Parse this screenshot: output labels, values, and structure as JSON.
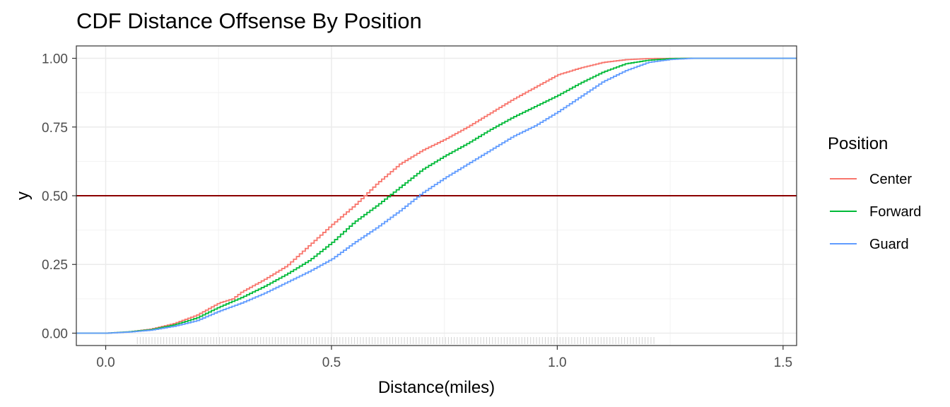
{
  "chart_data": {
    "type": "line",
    "subtype": "step-cdf",
    "title": "CDF Distance Offsense By Position",
    "xlabel": "Distance(miles)",
    "ylabel": "y",
    "xlim": [
      -0.065,
      1.53
    ],
    "ylim": [
      -0.045,
      1.045
    ],
    "x_ticks": [
      {
        "value": 0.0,
        "label": "0.0"
      },
      {
        "value": 0.5,
        "label": "0.5"
      },
      {
        "value": 1.0,
        "label": "1.0"
      },
      {
        "value": 1.5,
        "label": "1.5"
      }
    ],
    "y_ticks": [
      {
        "value": 0.0,
        "label": "0.00"
      },
      {
        "value": 0.25,
        "label": "0.25"
      },
      {
        "value": 0.5,
        "label": "0.50"
      },
      {
        "value": 0.75,
        "label": "0.75"
      },
      {
        "value": 1.0,
        "label": "1.00"
      }
    ],
    "grid": true,
    "hline": {
      "y": 0.5,
      "color": "#8b0000"
    },
    "legend": {
      "title": "Position",
      "position": "right"
    },
    "series": [
      {
        "name": "Center",
        "color": "#f8766d",
        "x": [
          0.0,
          0.05,
          0.1,
          0.15,
          0.2,
          0.25,
          0.28,
          0.3,
          0.35,
          0.4,
          0.45,
          0.5,
          0.55,
          0.6,
          0.65,
          0.7,
          0.75,
          0.8,
          0.85,
          0.9,
          0.95,
          1.0,
          1.05,
          1.1,
          1.15,
          1.2,
          1.3,
          1.53
        ],
        "y": [
          0.0,
          0.005,
          0.015,
          0.035,
          0.065,
          0.11,
          0.125,
          0.15,
          0.195,
          0.245,
          0.32,
          0.395,
          0.465,
          0.545,
          0.615,
          0.665,
          0.705,
          0.75,
          0.8,
          0.85,
          0.895,
          0.94,
          0.965,
          0.985,
          0.995,
          0.999,
          1.0,
          1.0
        ]
      },
      {
        "name": "Forward",
        "color": "#00ba38",
        "x": [
          0.0,
          0.05,
          0.1,
          0.15,
          0.2,
          0.25,
          0.3,
          0.35,
          0.4,
          0.45,
          0.5,
          0.55,
          0.6,
          0.65,
          0.7,
          0.75,
          0.8,
          0.85,
          0.9,
          0.95,
          1.0,
          1.05,
          1.1,
          1.15,
          1.2,
          1.25,
          1.3,
          1.53
        ],
        "y": [
          0.0,
          0.005,
          0.013,
          0.03,
          0.055,
          0.095,
          0.13,
          0.17,
          0.215,
          0.265,
          0.33,
          0.405,
          0.465,
          0.53,
          0.595,
          0.645,
          0.69,
          0.74,
          0.785,
          0.825,
          0.865,
          0.91,
          0.95,
          0.98,
          0.993,
          0.999,
          1.0,
          1.0
        ]
      },
      {
        "name": "Guard",
        "color": "#619cff",
        "x": [
          0.0,
          0.05,
          0.1,
          0.15,
          0.2,
          0.25,
          0.3,
          0.35,
          0.4,
          0.45,
          0.5,
          0.55,
          0.6,
          0.65,
          0.7,
          0.75,
          0.8,
          0.85,
          0.9,
          0.95,
          1.0,
          1.05,
          1.1,
          1.15,
          1.2,
          1.25,
          1.3,
          1.53
        ],
        "y": [
          0.0,
          0.004,
          0.011,
          0.025,
          0.045,
          0.08,
          0.11,
          0.145,
          0.185,
          0.225,
          0.27,
          0.33,
          0.385,
          0.445,
          0.51,
          0.565,
          0.615,
          0.665,
          0.715,
          0.755,
          0.805,
          0.86,
          0.915,
          0.955,
          0.985,
          0.996,
          1.0,
          1.0
        ]
      }
    ]
  }
}
